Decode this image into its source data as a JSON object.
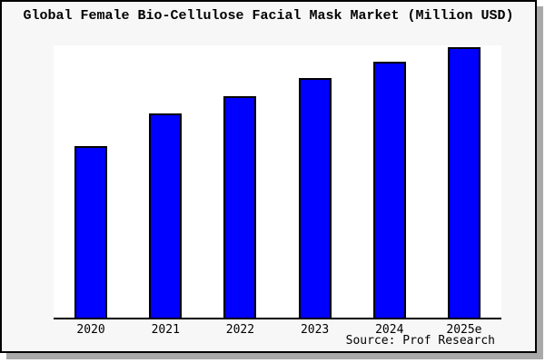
{
  "window": {
    "canvas_bg": "#ffffff",
    "frame_bg": "#f7f7f7",
    "frame_border_color": "#000000",
    "shadow_color": "#a9a9a9",
    "plot_bg": "#ffffff",
    "axis_color": "#000000"
  },
  "title": "Global Female Bio-Cellulose Facial Mask Market (Million USD)",
  "source": "Source: Prof Research",
  "chart_data": {
    "type": "bar",
    "title": "Global Female Bio-Cellulose Facial Mask Market (Million USD)",
    "categories": [
      "2020",
      "2021",
      "2022",
      "2023",
      "2024",
      "2025e"
    ],
    "values": [
      63.0,
      75.0,
      81.3,
      88.0,
      94.0,
      99.3
    ],
    "value_unit": "percent of plot height (chart shows no numeric y-axis; values estimated from bar pixel heights)",
    "relative_index_2020_eq_100": [
      100,
      119,
      129,
      140,
      149,
      158
    ],
    "xlabel": "",
    "ylabel": "",
    "ylim": null,
    "grid": false,
    "legend_position": "none",
    "bar_color": "#0000fe",
    "bar_border_color": "#000000",
    "source_note": "Source: Prof Research"
  }
}
